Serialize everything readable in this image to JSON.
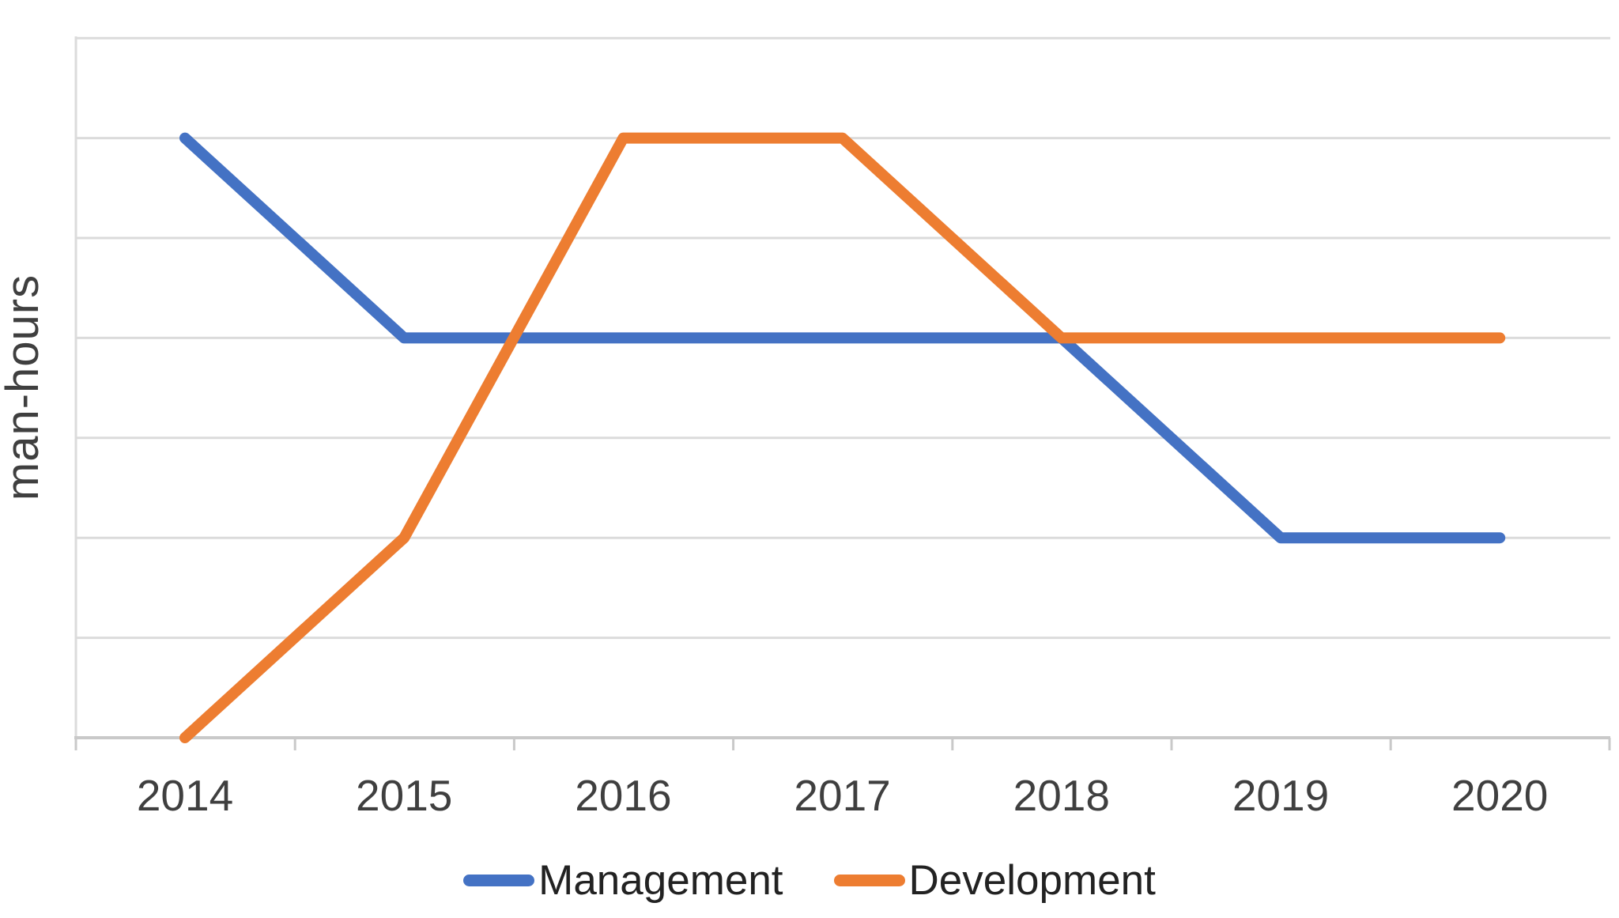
{
  "chart_data": {
    "type": "line",
    "title": "",
    "categories": [
      "2014",
      "2015",
      "2016",
      "2017",
      "2018",
      "2019",
      "2020"
    ],
    "series": [
      {
        "name": "Management",
        "color": "#4472C4",
        "values": [
          6,
          4,
          4,
          4,
          4,
          2,
          2
        ]
      },
      {
        "name": "Development",
        "color": "#ED7D31",
        "values": [
          0,
          2,
          6,
          6,
          4,
          4,
          4
        ]
      }
    ],
    "xlabel": "",
    "ylabel": "man-hours",
    "ylim": [
      0,
      7
    ],
    "y_gridline_step": 1,
    "y_tick_labels_shown": false,
    "values_unit": "gridline units (y axis has no numeric labels)",
    "grid": "horizontal",
    "legend_position": "bottom-center",
    "grid_color": "#DBDBDB",
    "axis_color": "#C9C9C9",
    "text_color": "#3F3F3F"
  }
}
